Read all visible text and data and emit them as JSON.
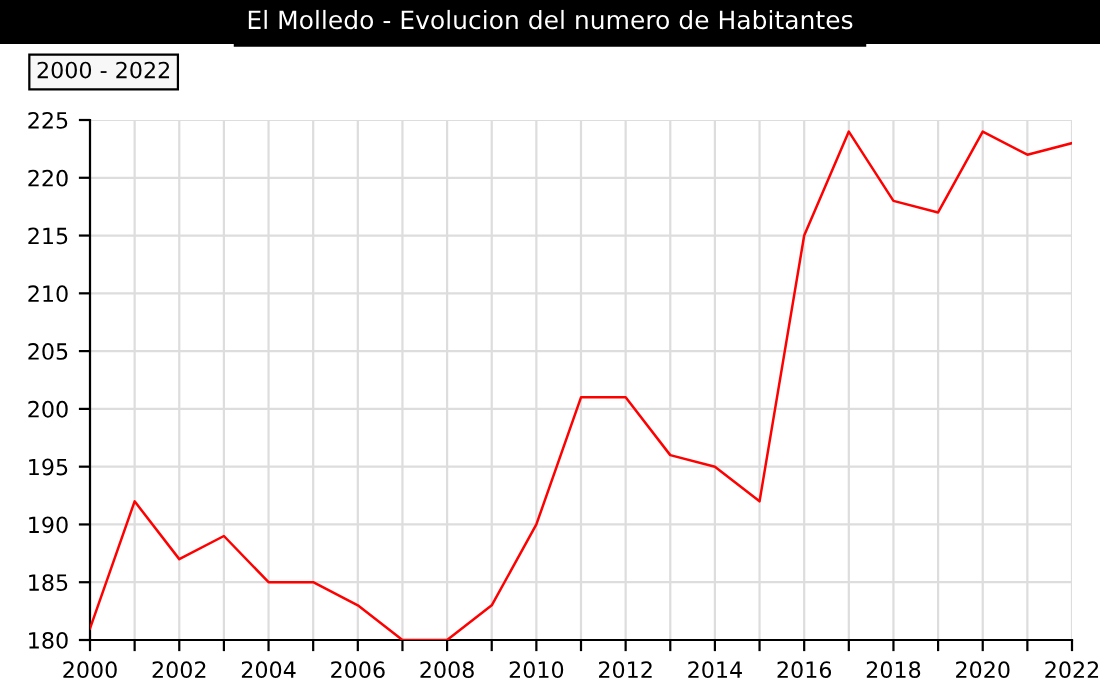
{
  "chart_data": {
    "type": "line",
    "title": "El Molledo - Evolucion del numero de Habitantes",
    "annotations": [
      "2000 - 2022"
    ],
    "x": [
      2000,
      2001,
      2002,
      2003,
      2004,
      2005,
      2006,
      2007,
      2008,
      2009,
      2010,
      2011,
      2012,
      2013,
      2014,
      2015,
      2016,
      2017,
      2018,
      2019,
      2020,
      2021,
      2022
    ],
    "series": [
      {
        "color": "#ff0000",
        "values": [
          181,
          192,
          187,
          189,
          185,
          185,
          183,
          180,
          180,
          183,
          190,
          201,
          201,
          196,
          195,
          192,
          215,
          224,
          218,
          217,
          224,
          222,
          223
        ]
      }
    ],
    "xlim": [
      2000,
      2022
    ],
    "xticks": [
      2000,
      {
        "value": 2001,
        "label": null
      },
      2002,
      {
        "value": 2003,
        "label": null
      },
      2004,
      {
        "value": 2005,
        "label": null
      },
      2006,
      {
        "value": 2007,
        "label": null
      },
      2008,
      {
        "value": 2009,
        "label": null
      },
      2010,
      {
        "value": 2011,
        "label": null
      },
      2012,
      {
        "value": 2013,
        "label": null
      },
      2014,
      {
        "value": 2015,
        "label": null
      },
      2016,
      {
        "value": 2017,
        "label": null
      },
      2018,
      {
        "value": 2019,
        "label": null
      },
      2020,
      {
        "value": 2021,
        "label": null
      },
      2022
    ],
    "ylim": [
      180,
      225
    ],
    "yticks": [
      180,
      185,
      190,
      195,
      200,
      205,
      210,
      215,
      220,
      225
    ],
    "grid": true,
    "legend": false,
    "marker": "none",
    "line_style": "solid"
  }
}
